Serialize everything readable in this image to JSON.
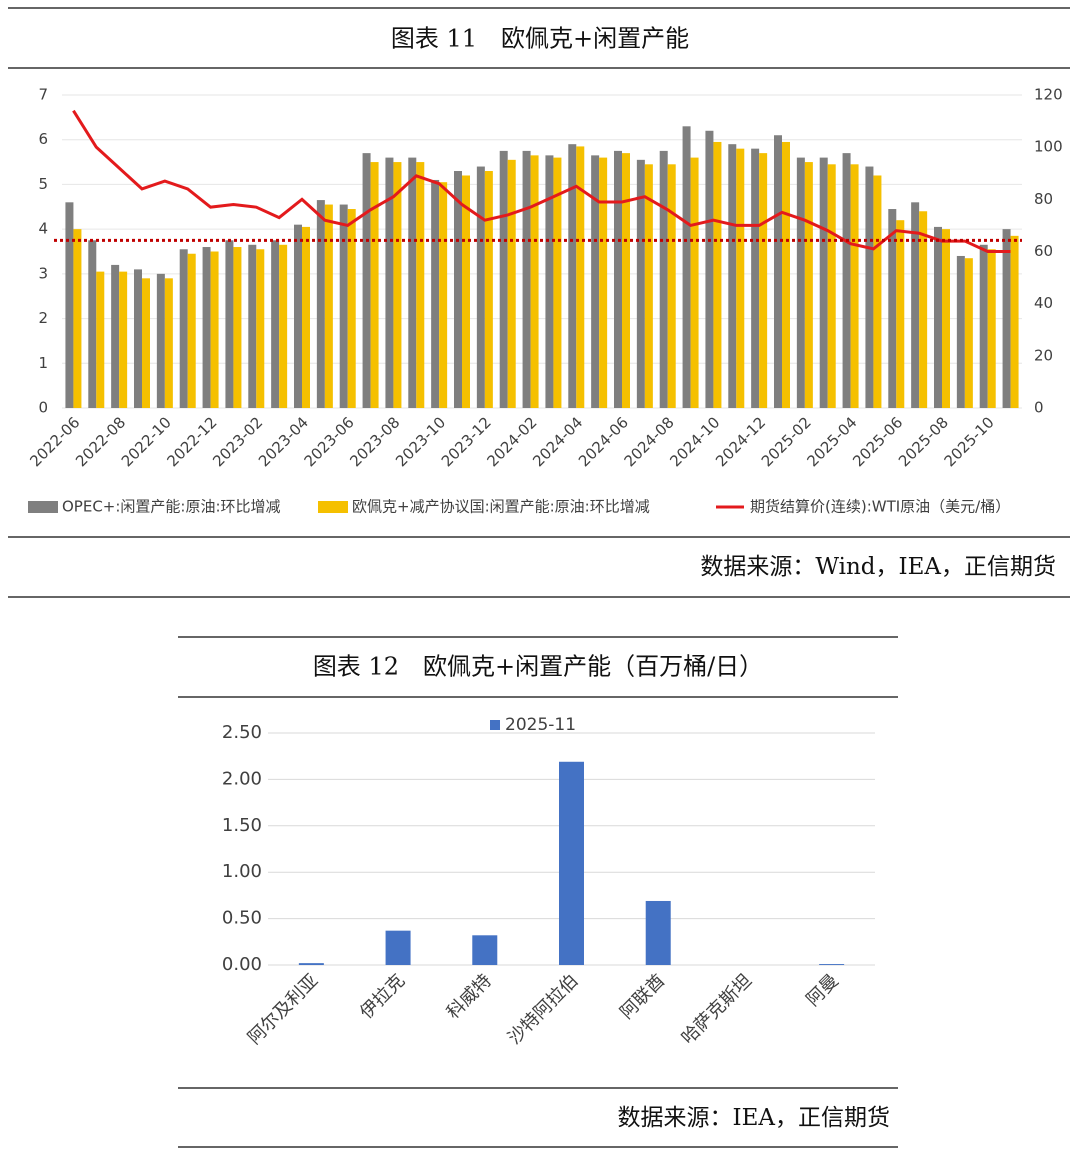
{
  "chart_data": [
    {
      "type": "bar",
      "title": "图表 11　欧佩克+闲置产能",
      "source": "数据来源：Wind，IEA，正信期货",
      "categories": [
        "2022-06",
        null,
        "2022-08",
        null,
        "2022-10",
        null,
        "2022-12",
        null,
        "2023-02",
        null,
        "2023-04",
        null,
        "2023-06",
        null,
        "2023-08",
        null,
        "2023-10",
        null,
        "2023-12",
        null,
        "2024-02",
        null,
        "2024-04",
        null,
        "2024-06",
        null,
        "2024-08",
        null,
        "2024-10",
        null,
        "2024-12",
        null,
        "2025-02",
        null,
        "2025-04",
        null,
        "2025-06",
        null,
        "2025-08",
        null,
        "2025-10",
        null
      ],
      "series": [
        {
          "name": "OPEC+:闲置产能:原油:环比增减",
          "color": "#7f7f7f",
          "values": [
            4.6,
            3.75,
            3.2,
            3.1,
            3.0,
            3.55,
            3.6,
            3.75,
            3.65,
            3.75,
            4.1,
            4.65,
            4.55,
            5.7,
            5.6,
            5.6,
            5.1,
            5.3,
            5.4,
            5.75,
            5.75,
            5.65,
            5.9,
            5.65,
            5.75,
            5.55,
            5.75,
            6.3,
            6.2,
            5.9,
            5.8,
            6.1,
            5.6,
            5.6,
            5.7,
            5.4,
            4.45,
            4.6,
            4.05,
            3.4,
            3.65,
            4.0
          ]
        },
        {
          "name": "欧佩克+减产协议国:闲置产能:原油:环比增减",
          "color": "#f5c000",
          "values": [
            4.0,
            3.05,
            3.05,
            2.9,
            2.9,
            3.45,
            3.5,
            3.6,
            3.55,
            3.65,
            4.05,
            4.55,
            4.45,
            5.5,
            5.5,
            5.5,
            5.05,
            5.2,
            5.3,
            5.55,
            5.65,
            5.6,
            5.85,
            5.6,
            5.7,
            5.45,
            5.45,
            5.6,
            5.95,
            5.8,
            5.7,
            5.95,
            5.5,
            5.45,
            5.45,
            5.2,
            4.2,
            4.4,
            4.0,
            3.35,
            3.55,
            3.85
          ]
        },
        {
          "name": "期货结算价(连续):WTI原油（美元/桶）",
          "color": "#e31a1c",
          "type": "line",
          "axis": "y2",
          "values": [
            114,
            100,
            92,
            84,
            87,
            84,
            77,
            78,
            77,
            73,
            80,
            72,
            70,
            76,
            81,
            89,
            86,
            78,
            72,
            74,
            77,
            81,
            85,
            79,
            79,
            81,
            76,
            70,
            72,
            70,
            70,
            75,
            72,
            68,
            63,
            61,
            68,
            67,
            64,
            64,
            60,
            60
          ]
        }
      ],
      "reference_line": {
        "value": 3.75,
        "color": "#c00000"
      },
      "ylim": [
        0,
        7
      ],
      "yticks": [
        0,
        1,
        2,
        3,
        4,
        5,
        6,
        7
      ],
      "y2lim": [
        0,
        120
      ],
      "y2ticks": [
        0,
        20,
        40,
        60,
        80,
        100,
        120
      ],
      "grid": true
    },
    {
      "type": "bar",
      "title": "图表 12　欧佩克+闲置产能（百万桶/日）",
      "source": "数据来源：IEA，正信期货",
      "categories": [
        "阿尔及利亚",
        "伊拉克",
        "科威特",
        "沙特阿拉伯",
        "阿联酋",
        "哈萨克斯坦",
        "阿曼"
      ],
      "series": [
        {
          "name": "2025-11",
          "color": "#4472c4",
          "values": [
            0.02,
            0.37,
            0.32,
            2.19,
            0.69,
            0,
            0.01
          ]
        }
      ],
      "ylim": [
        0,
        2.5
      ],
      "yticks": [
        {
          "value": 0,
          "label": "0.00"
        },
        {
          "value": 0.5,
          "label": "0.50"
        },
        {
          "value": 1,
          "label": "1.00"
        },
        {
          "value": 1.5,
          "label": "1.50"
        },
        {
          "value": 2,
          "label": "2.00"
        },
        {
          "value": 2.5,
          "label": "2.50"
        }
      ],
      "grid": true
    }
  ]
}
